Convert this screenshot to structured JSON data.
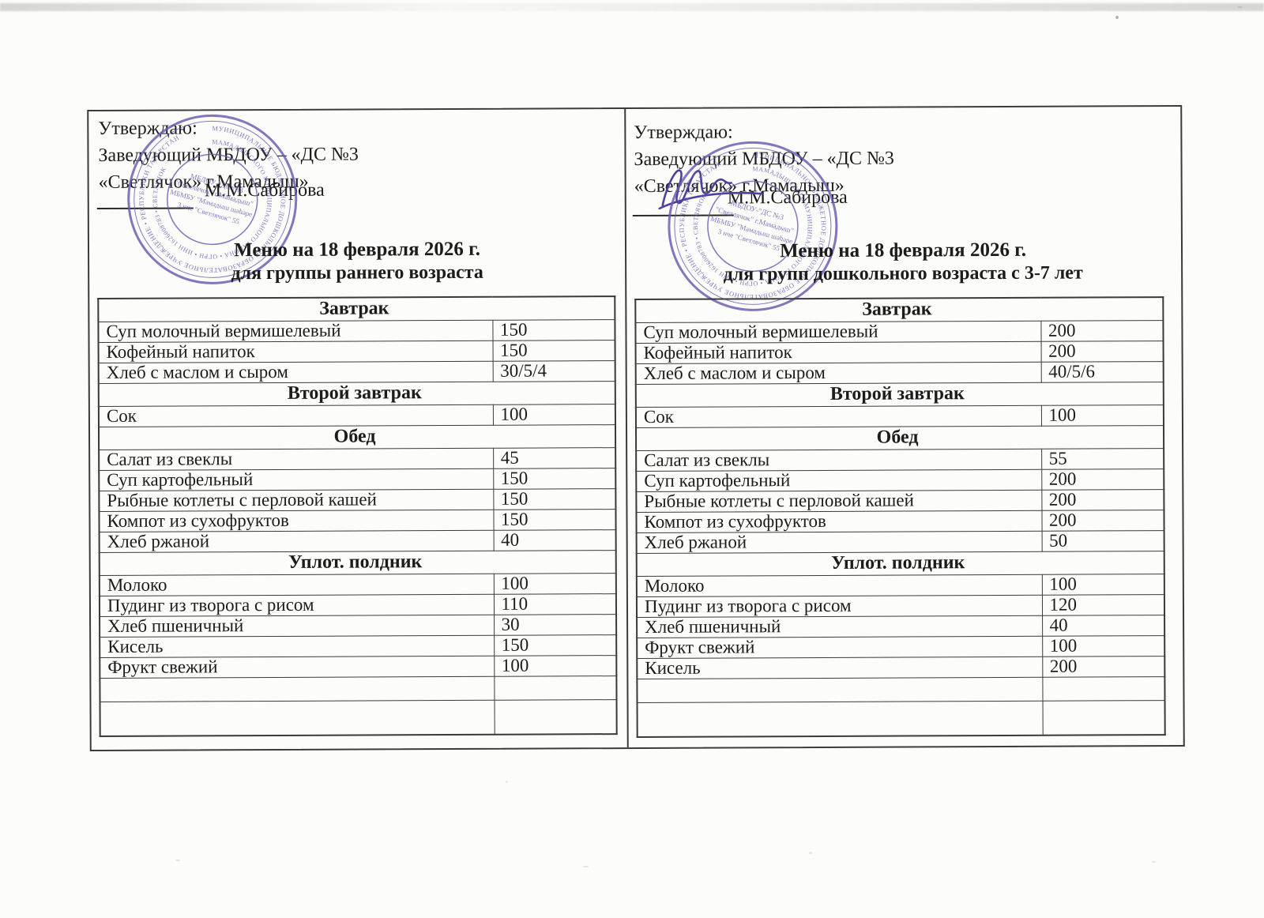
{
  "document": {
    "approval_label": "Утверждаю:",
    "approval_line2": "Заведующий МБДОУ – «ДС №3",
    "approval_line3": "«Светлячок» г.Мамадыш»",
    "signer_name": "М.М.Сабирова"
  },
  "menus": [
    {
      "title": "Меню на 18 февраля 2026 г.",
      "subtitle": "для группы раннего возраста",
      "rows": [
        {
          "type": "section",
          "label": "Завтрак"
        },
        {
          "type": "item",
          "dish": "Суп молочный вермишелевый",
          "portion": "150"
        },
        {
          "type": "item",
          "dish": "Кофейный напиток",
          "portion": "150"
        },
        {
          "type": "item",
          "dish": "Хлеб с маслом и сыром",
          "portion": "30/5/4"
        },
        {
          "type": "section",
          "label": "Второй завтрак"
        },
        {
          "type": "item",
          "dish": "Сок",
          "portion": "100"
        },
        {
          "type": "section",
          "label": "Обед"
        },
        {
          "type": "item",
          "dish": "Салат из свеклы",
          "portion": "45"
        },
        {
          "type": "item",
          "dish": "Суп картофельный",
          "portion": "150"
        },
        {
          "type": "item",
          "dish": "Рыбные котлеты с перловой кашей",
          "portion": "150"
        },
        {
          "type": "item",
          "dish": "Компот из сухофруктов",
          "portion": "150"
        },
        {
          "type": "item",
          "dish": "Хлеб ржаной",
          "portion": "40"
        },
        {
          "type": "section",
          "label": "Уплот. полдник"
        },
        {
          "type": "item",
          "dish": "Молоко",
          "portion": "100"
        },
        {
          "type": "item",
          "dish": "Пудинг из творога с рисом",
          "portion": "110"
        },
        {
          "type": "item",
          "dish": "Хлеб пшеничный",
          "portion": "30"
        },
        {
          "type": "item",
          "dish": "Кисель",
          "portion": "150"
        },
        {
          "type": "item",
          "dish": "Фрукт свежий",
          "portion": "100"
        },
        {
          "type": "empty",
          "dish": "",
          "portion": ""
        },
        {
          "type": "empty",
          "dish": "",
          "portion": ""
        }
      ]
    },
    {
      "title": "Меню на 18 февраля 2026 г.",
      "subtitle": "для групп дошкольного возраста с 3-7 лет",
      "rows": [
        {
          "type": "section",
          "label": "Завтрак"
        },
        {
          "type": "item",
          "dish": "Суп молочный вермишелевый",
          "portion": "200"
        },
        {
          "type": "item",
          "dish": "Кофейный напиток",
          "portion": "200"
        },
        {
          "type": "item",
          "dish": "Хлеб с маслом и сыром",
          "portion": "40/5/6"
        },
        {
          "type": "section",
          "label": "Второй завтрак"
        },
        {
          "type": "item",
          "dish": "Сок",
          "portion": "100"
        },
        {
          "type": "section",
          "label": "Обед"
        },
        {
          "type": "item",
          "dish": "Салат из свеклы",
          "portion": "55"
        },
        {
          "type": "item",
          "dish": "Суп картофельный",
          "portion": "200"
        },
        {
          "type": "item",
          "dish": "Рыбные котлеты с перловой кашей",
          "portion": "200"
        },
        {
          "type": "item",
          "dish": "Компот из сухофруктов",
          "portion": "200"
        },
        {
          "type": "item",
          "dish": "Хлеб ржаной",
          "portion": "50"
        },
        {
          "type": "section",
          "label": "Уплот. полдник"
        },
        {
          "type": "item",
          "dish": "Молоко",
          "portion": "100"
        },
        {
          "type": "item",
          "dish": "Пудинг из творога с рисом",
          "portion": "120"
        },
        {
          "type": "item",
          "dish": "Хлеб пшеничный",
          "portion": "40"
        },
        {
          "type": "item",
          "dish": "Фрукт свежий",
          "portion": "100"
        },
        {
          "type": "item",
          "dish": "Кисель",
          "portion": "200"
        },
        {
          "type": "empty",
          "dish": "",
          "portion": ""
        },
        {
          "type": "empty",
          "dish": "",
          "portion": ""
        }
      ]
    }
  ],
  "stamp": {
    "color": "#6d58b0",
    "ring_outer": "МУНИЦИПАЛЬНОЕ БЮДЖЕТНОЕ ДОШКОЛЬНОЕ ОБРАЗОВАТЕЛЬНОЕ УЧРЕЖДЕНИЕ • РЕСПУБЛИКИ ТАТАРСТАН",
    "ring_inner": "МАМАДЫШСКОГО МУНИЦИПАЛЬНОГО РАЙОНА • ОГРН • ИНН 1626008783 • СВЕТЛЯЧОК",
    "center_line1": "МБДОУ-\"ДС №3",
    "center_line2": "\"Светлячок\" г.Мамадыш\"",
    "center_line3": "МБМБУ \"Мамадыш шәһәре",
    "center_line4": "3 нче \"Светлячок\" 55"
  }
}
